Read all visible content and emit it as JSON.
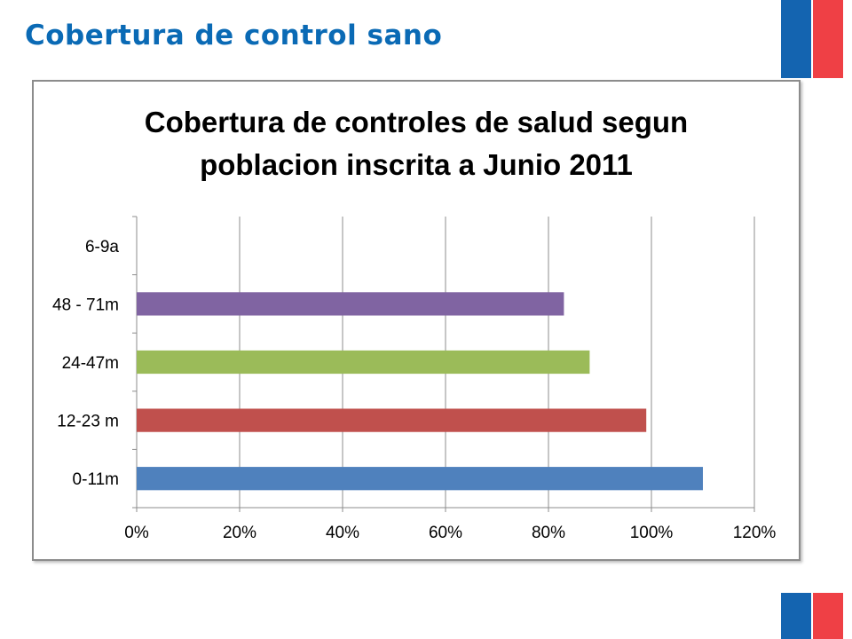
{
  "page": {
    "title": "Cobertura de control sano"
  },
  "colors": {
    "title": "#0a6ab5",
    "flag_blue": "#1464b0",
    "flag_red": "#ef4045"
  },
  "chart_data": {
    "type": "bar",
    "orientation": "horizontal",
    "title_lines": [
      "Cobertura  de controles de salud segun",
      "poblacion inscrita  a Junio 2011"
    ],
    "categories": [
      "0-11m",
      "12-23 m",
      "24-47m",
      "48 - 71m",
      "6-9a"
    ],
    "values": [
      110,
      99,
      88,
      83,
      null
    ],
    "bar_colors": [
      "#4f81bd",
      "#c0504d",
      "#9bbb59",
      "#8064a2",
      "#4bacc6"
    ],
    "xlim": [
      0,
      120
    ],
    "x_ticks": [
      "0%",
      "20%",
      "40%",
      "60%",
      "80%",
      "100%",
      "120%"
    ],
    "x_tick_values": [
      0,
      20,
      40,
      60,
      80,
      100,
      120
    ],
    "grid": true,
    "legend": "none",
    "xlabel": "",
    "ylabel": ""
  }
}
